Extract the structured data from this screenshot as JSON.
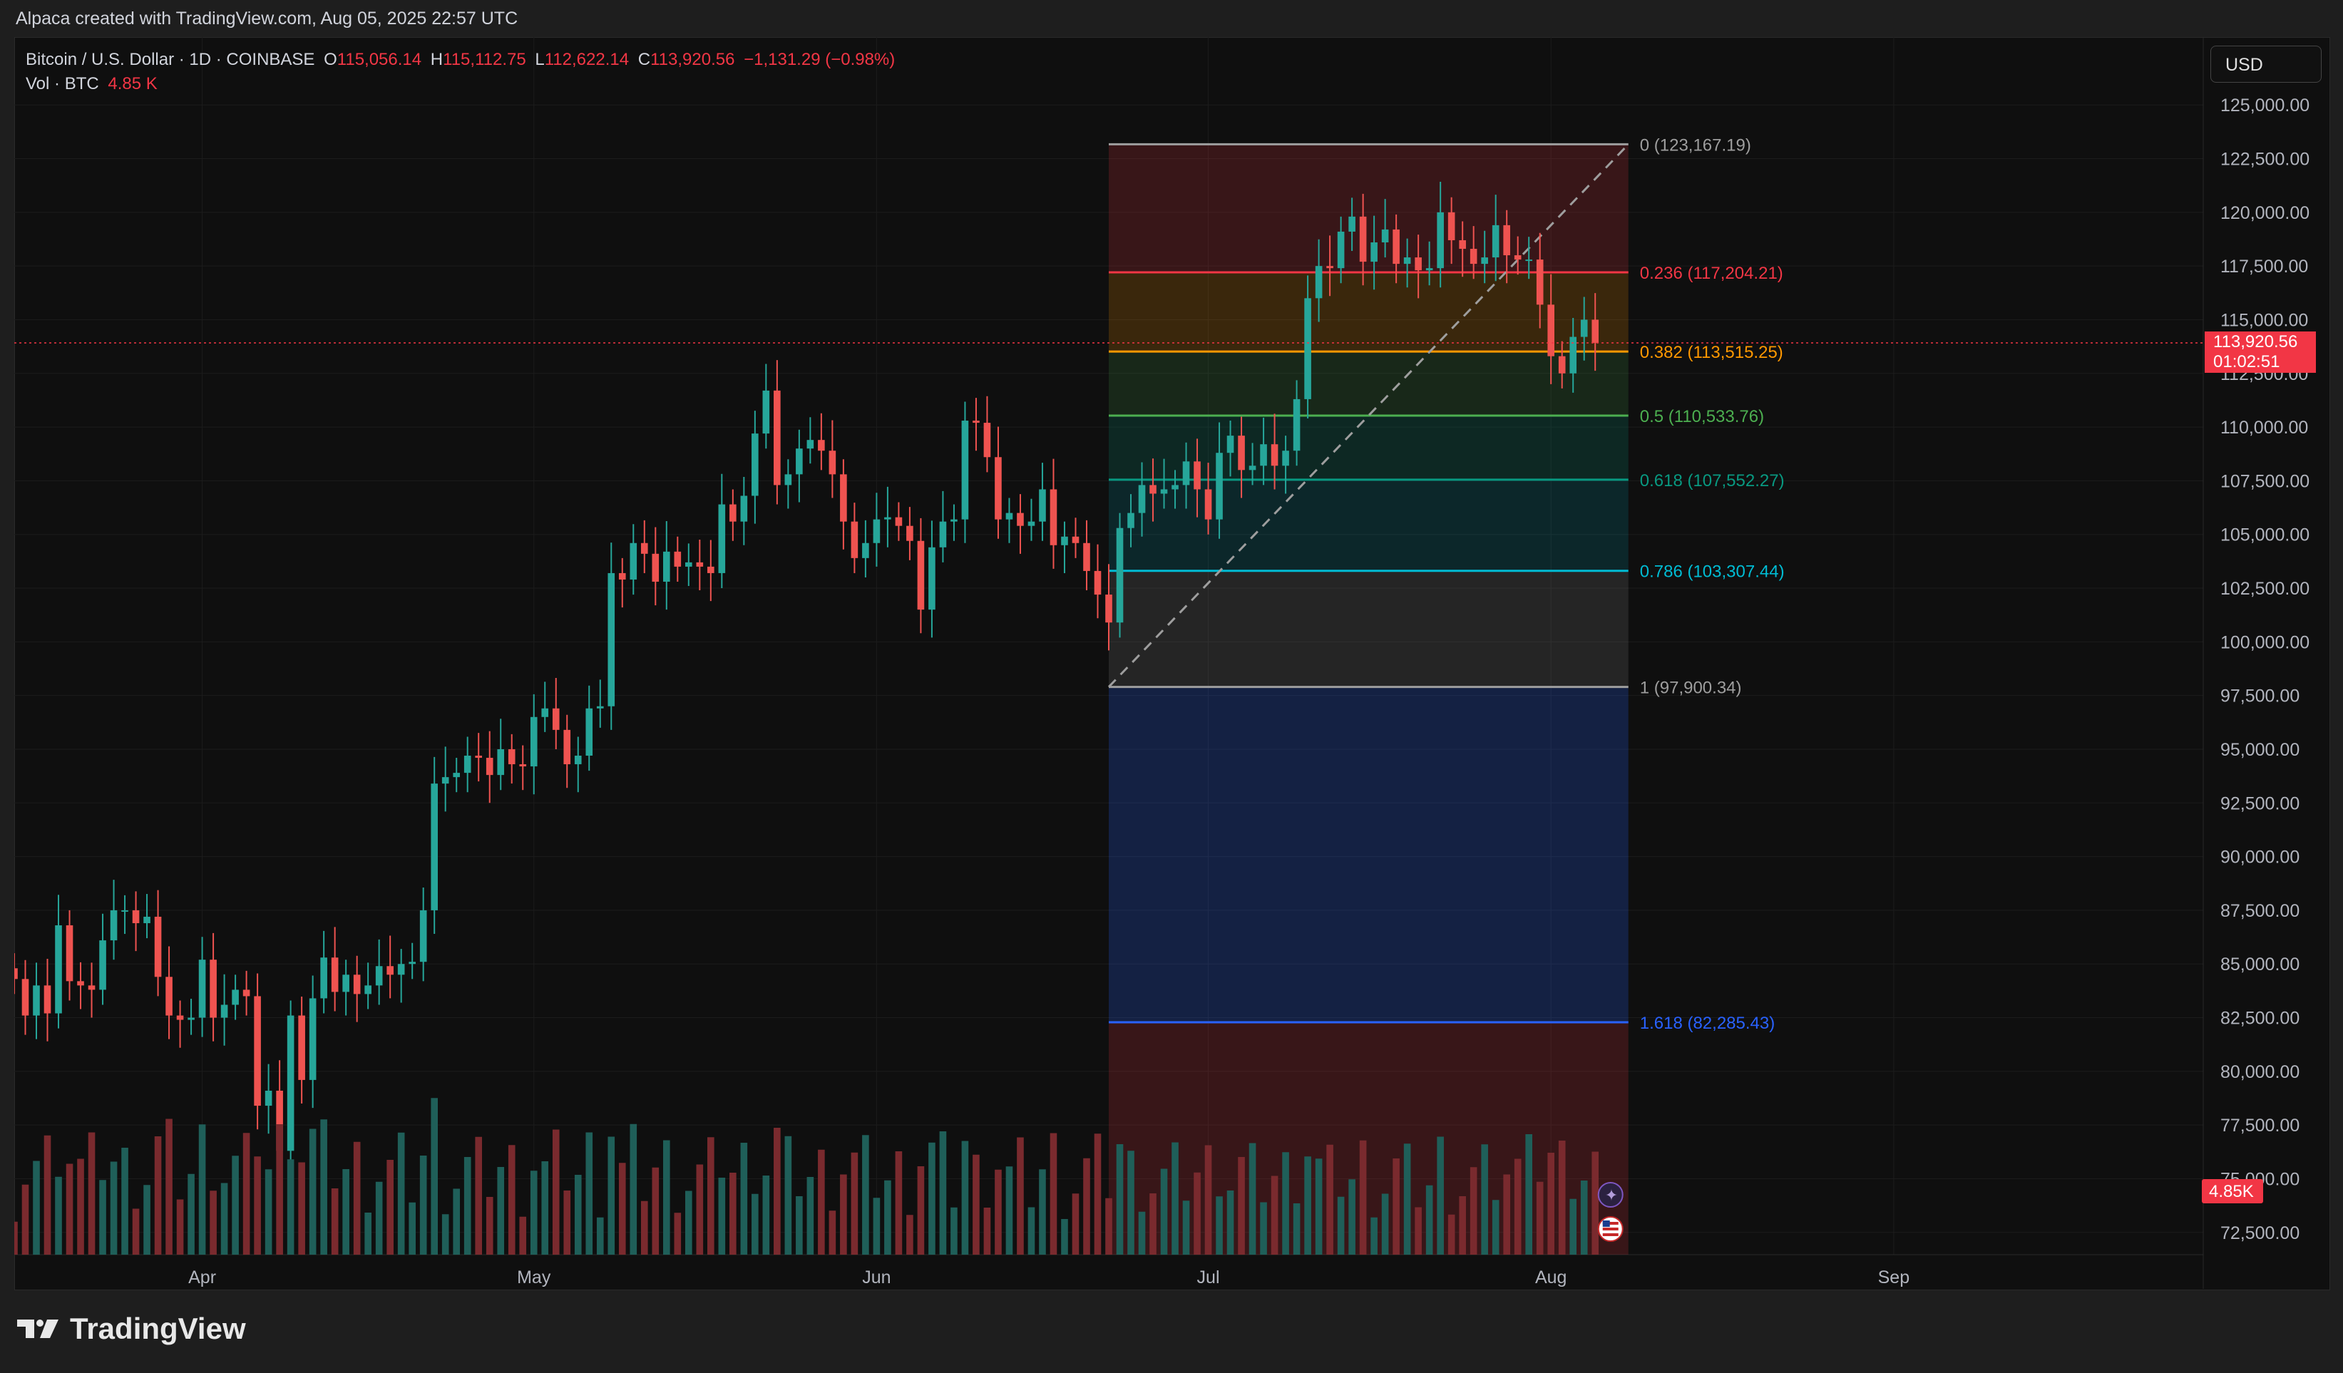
{
  "caption": "Alpaca created with TradingView.com, Aug 05, 2025 22:57 UTC",
  "legend": {
    "symbol": "Bitcoin / U.S. Dollar · 1D · COINBASE",
    "o_label": "O",
    "o": "115,056.14",
    "h_label": "H",
    "h": "115,112.75",
    "l_label": "L",
    "l": "112,622.14",
    "c_label": "C",
    "c": "113,920.56",
    "change": "−1,131.29 (−0.98%)",
    "vol_label": "Vol · BTC",
    "vol": "4.85 K"
  },
  "currency": "USD",
  "brand": "TradingView",
  "colors": {
    "up": "#26a69a",
    "down": "#ef5350",
    "vol_up": "#1f5f59",
    "vol_down": "#7a2a2e",
    "background": "#0f0f0f",
    "grid": "#1c1c1c",
    "text": "#b2b5be"
  },
  "chart_data": {
    "type": "candlestick",
    "title": "Bitcoin / U.S. Dollar · 1D · COINBASE",
    "x_ticks": [
      "Apr",
      "May",
      "Jun",
      "Jul",
      "Aug",
      "Sep"
    ],
    "y_ticks": [
      "72,500.00",
      "75,000.00",
      "77,500.00",
      "80,000.00",
      "82,500.00",
      "85,000.00",
      "87,500.00",
      "90,000.00",
      "92,500.00",
      "95,000.00",
      "97,500.00",
      "100,000.00",
      "102,500.00",
      "105,000.00",
      "107,500.00",
      "110,000.00",
      "112,500.00",
      "115,000.00",
      "117,500.00",
      "120,000.00",
      "122,500.00",
      "125,000.00"
    ],
    "ylim": [
      71000,
      126500
    ],
    "x_start": "2025-03-15",
    "x_end": "2025-09-29",
    "last_price": "113,920.56",
    "countdown": "01:02:51",
    "volume_badge": "4.85K",
    "closes": [
      [
        "2025-03-15",
        84300
      ],
      [
        "2025-03-16",
        82600
      ],
      [
        "2025-03-17",
        84000
      ],
      [
        "2025-03-18",
        82700
      ],
      [
        "2025-03-19",
        86800
      ],
      [
        "2025-03-20",
        84200
      ],
      [
        "2025-03-21",
        84000
      ],
      [
        "2025-03-22",
        83800
      ],
      [
        "2025-03-23",
        86100
      ],
      [
        "2025-03-24",
        87500
      ],
      [
        "2025-03-25",
        87500
      ],
      [
        "2025-03-26",
        86900
      ],
      [
        "2025-03-27",
        87200
      ],
      [
        "2025-03-28",
        84400
      ],
      [
        "2025-03-29",
        82600
      ],
      [
        "2025-03-30",
        82400
      ],
      [
        "2025-03-31",
        82500
      ],
      [
        "2025-04-01",
        85200
      ],
      [
        "2025-04-02",
        82500
      ],
      [
        "2025-04-03",
        83100
      ],
      [
        "2025-04-04",
        83800
      ],
      [
        "2025-04-05",
        83500
      ],
      [
        "2025-04-06",
        78400
      ],
      [
        "2025-04-07",
        79100
      ],
      [
        "2025-04-08",
        76300
      ],
      [
        "2025-04-09",
        82600
      ],
      [
        "2025-04-10",
        79600
      ],
      [
        "2025-04-11",
        83400
      ],
      [
        "2025-04-12",
        85300
      ],
      [
        "2025-04-13",
        83700
      ],
      [
        "2025-04-14",
        84500
      ],
      [
        "2025-04-15",
        83600
      ],
      [
        "2025-04-16",
        84000
      ],
      [
        "2025-04-17",
        84900
      ],
      [
        "2025-04-18",
        84500
      ],
      [
        "2025-04-19",
        85000
      ],
      [
        "2025-04-20",
        85100
      ],
      [
        "2025-04-21",
        87500
      ],
      [
        "2025-04-22",
        93400
      ],
      [
        "2025-04-23",
        93700
      ],
      [
        "2025-04-24",
        93900
      ],
      [
        "2025-04-25",
        94700
      ],
      [
        "2025-04-26",
        94600
      ],
      [
        "2025-04-27",
        93800
      ],
      [
        "2025-04-28",
        95000
      ],
      [
        "2025-04-29",
        94300
      ],
      [
        "2025-04-30",
        94200
      ],
      [
        "2025-05-01",
        96500
      ],
      [
        "2025-05-02",
        96900
      ],
      [
        "2025-05-03",
        95900
      ],
      [
        "2025-05-04",
        94300
      ],
      [
        "2025-05-05",
        94700
      ],
      [
        "2025-05-06",
        96900
      ],
      [
        "2025-05-07",
        97000
      ],
      [
        "2025-05-08",
        103200
      ],
      [
        "2025-05-09",
        102900
      ],
      [
        "2025-05-10",
        104600
      ],
      [
        "2025-05-11",
        104100
      ],
      [
        "2025-05-12",
        102800
      ],
      [
        "2025-05-13",
        104200
      ],
      [
        "2025-05-14",
        103500
      ],
      [
        "2025-05-15",
        103700
      ],
      [
        "2025-05-16",
        103500
      ],
      [
        "2025-05-17",
        103200
      ],
      [
        "2025-05-18",
        106400
      ],
      [
        "2025-05-19",
        105600
      ],
      [
        "2025-05-20",
        106800
      ],
      [
        "2025-05-21",
        109700
      ],
      [
        "2025-05-22",
        111700
      ],
      [
        "2025-05-23",
        107300
      ],
      [
        "2025-05-24",
        107800
      ],
      [
        "2025-05-25",
        109000
      ],
      [
        "2025-05-26",
        109400
      ],
      [
        "2025-05-27",
        108900
      ],
      [
        "2025-05-28",
        107800
      ],
      [
        "2025-05-29",
        105600
      ],
      [
        "2025-05-30",
        103900
      ],
      [
        "2025-05-31",
        104600
      ],
      [
        "2025-06-01",
        105700
      ],
      [
        "2025-06-02",
        105800
      ],
      [
        "2025-06-03",
        105400
      ],
      [
        "2025-06-04",
        104700
      ],
      [
        "2025-06-05",
        101500
      ],
      [
        "2025-06-06",
        104400
      ],
      [
        "2025-06-07",
        105600
      ],
      [
        "2025-06-08",
        105700
      ],
      [
        "2025-06-09",
        110300
      ],
      [
        "2025-06-10",
        110200
      ],
      [
        "2025-06-11",
        108600
      ],
      [
        "2025-06-12",
        105700
      ],
      [
        "2025-06-13",
        106000
      ],
      [
        "2025-06-14",
        105400
      ],
      [
        "2025-06-15",
        105600
      ],
      [
        "2025-06-16",
        107100
      ],
      [
        "2025-06-17",
        104500
      ],
      [
        "2025-06-18",
        104900
      ],
      [
        "2025-06-19",
        104600
      ],
      [
        "2025-06-20",
        103300
      ],
      [
        "2025-06-21",
        102200
      ],
      [
        "2025-06-22",
        100900
      ],
      [
        "2025-06-23",
        105300
      ],
      [
        "2025-06-24",
        106000
      ],
      [
        "2025-06-25",
        107300
      ],
      [
        "2025-06-26",
        106900
      ],
      [
        "2025-06-27",
        107100
      ],
      [
        "2025-06-28",
        107300
      ],
      [
        "2025-06-29",
        108400
      ],
      [
        "2025-06-30",
        107100
      ],
      [
        "2025-07-01",
        105700
      ],
      [
        "2025-07-02",
        108800
      ],
      [
        "2025-07-03",
        109600
      ],
      [
        "2025-07-04",
        108000
      ],
      [
        "2025-07-05",
        108200
      ],
      [
        "2025-07-06",
        109200
      ],
      [
        "2025-07-07",
        108200
      ],
      [
        "2025-07-08",
        108900
      ],
      [
        "2025-07-09",
        111300
      ],
      [
        "2025-07-10",
        116000
      ],
      [
        "2025-07-11",
        117500
      ],
      [
        "2025-07-12",
        117400
      ],
      [
        "2025-07-13",
        119100
      ],
      [
        "2025-07-14",
        119800
      ],
      [
        "2025-07-15",
        117700
      ],
      [
        "2025-07-16",
        118600
      ],
      [
        "2025-07-17",
        119200
      ],
      [
        "2025-07-18",
        117600
      ],
      [
        "2025-07-19",
        117900
      ],
      [
        "2025-07-20",
        117300
      ],
      [
        "2025-07-21",
        117400
      ],
      [
        "2025-07-22",
        120000
      ],
      [
        "2025-07-23",
        118700
      ],
      [
        "2025-07-24",
        118300
      ],
      [
        "2025-07-25",
        117600
      ],
      [
        "2025-07-26",
        117900
      ],
      [
        "2025-07-27",
        119400
      ],
      [
        "2025-07-28",
        118000
      ],
      [
        "2025-07-29",
        117800
      ],
      [
        "2025-07-30",
        117800
      ],
      [
        "2025-07-31",
        115700
      ],
      [
        "2025-08-01",
        113300
      ],
      [
        "2025-08-02",
        112500
      ],
      [
        "2025-08-03",
        114200
      ],
      [
        "2025-08-04",
        115000
      ],
      [
        "2025-08-05",
        113920.56
      ]
    ],
    "fibonacci": {
      "from_date": "2025-06-22",
      "to_date": "2025-08-08",
      "levels": [
        {
          "label": "0 (123,167.19)",
          "price": 123167.19,
          "color": "#9e9e9e"
        },
        {
          "label": "0.236 (117,204.21)",
          "price": 117204.21,
          "color": "#f23645"
        },
        {
          "label": "0.382 (113,515.25)",
          "price": 113515.25,
          "color": "#ff9800"
        },
        {
          "label": "0.5 (110,533.76)",
          "price": 110533.76,
          "color": "#4caf50"
        },
        {
          "label": "0.618 (107,552.27)",
          "price": 107552.27,
          "color": "#089981"
        },
        {
          "label": "0.786 (103,307.44)",
          "price": 103307.44,
          "color": "#00bcd4"
        },
        {
          "label": "1 (97,900.34)",
          "price": 97900.34,
          "color": "#9e9e9e"
        },
        {
          "label": "1.618 (82,285.43)",
          "price": 82285.43,
          "color": "#2962ff"
        }
      ]
    }
  }
}
